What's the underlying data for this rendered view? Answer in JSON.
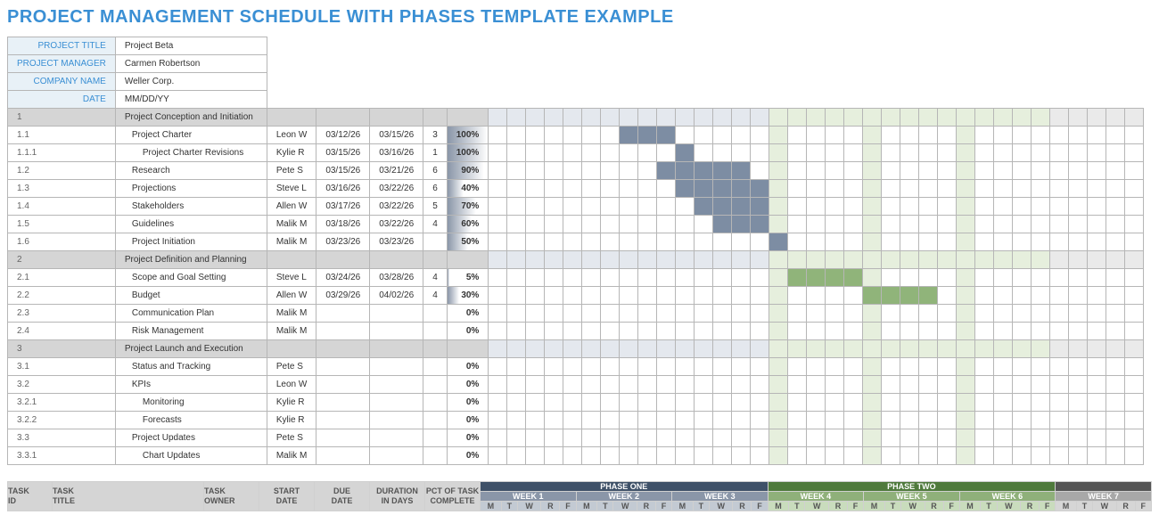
{
  "title": "PROJECT MANAGEMENT SCHEDULE WITH PHASES TEMPLATE EXAMPLE",
  "title_color": "#3a8fd4",
  "meta": {
    "labels": {
      "project_title": "PROJECT TITLE",
      "project_manager": "PROJECT MANAGER",
      "company_name": "COMPANY NAME",
      "date": "DATE"
    },
    "values": {
      "project_title": "Project Beta",
      "project_manager": "Carmen Robertson",
      "company_name": "Weller Corp.",
      "date": "MM/DD/YY"
    },
    "label_bg": "#e8f1f7",
    "label_color": "#3a8fd4"
  },
  "columns": {
    "task_id": "TASK\nID",
    "task_title": "TASK\nTITLE",
    "task_owner": "TASK\nOWNER",
    "start_date": "START\nDATE",
    "due_date": "DUE\nDATE",
    "duration": "DURATION\nIN DAYS",
    "pct": "PCT OF TASK\nCOMPLETE"
  },
  "header_bg": "#d5d5d5",
  "phases": [
    {
      "label": "PHASE ONE",
      "bg": "#3f5168",
      "week_bg": "#8a96a8",
      "day_bg": "#c3cad3",
      "bar": "#7d8da3",
      "tint": "#e4e8ee",
      "weeks": [
        "WEEK 1",
        "WEEK 2",
        "WEEK 3"
      ]
    },
    {
      "label": "PHASE TWO",
      "bg": "#4f7a3c",
      "week_bg": "#8fb07a",
      "day_bg": "#c9dcbd",
      "bar": "#90b47a",
      "tint": "#e6efdd",
      "weeks": [
        "WEEK 4",
        "WEEK 5",
        "WEEK 6"
      ]
    },
    {
      "label": "",
      "bg": "#555555",
      "week_bg": "#a8a8a8",
      "day_bg": "#d6d6d6",
      "bar": "#9a9a9a",
      "tint": "#eaeaea",
      "weeks": [
        "WEEK 7"
      ]
    }
  ],
  "day_labels": [
    "M",
    "T",
    "W",
    "R",
    "F"
  ],
  "days_per_week": 5,
  "timeline_total_days": 35,
  "pct_gradient_from": "#8a96a8",
  "pct_gradient_to": "#ffffff",
  "section_bg": "#d5d5d5",
  "highlight_columns": {
    "phase1": [
      15,
      20
    ],
    "phase2": [
      25
    ]
  },
  "tasks": [
    {
      "id": "1",
      "title": "Project Conception and Initiation",
      "owner": "",
      "start": "",
      "due": "",
      "dur": "",
      "pct": null,
      "indent": 0,
      "section": true,
      "bar": null
    },
    {
      "id": "1.1",
      "title": "Project Charter",
      "owner": "Leon W",
      "start": "03/12/26",
      "due": "03/15/26",
      "dur": "3",
      "pct": 100,
      "indent": 1,
      "bar": {
        "start": 7,
        "len": 3,
        "phase": 0
      }
    },
    {
      "id": "1.1.1",
      "title": "Project Charter Revisions",
      "owner": "Kylie R",
      "start": "03/15/26",
      "due": "03/16/26",
      "dur": "1",
      "pct": 100,
      "indent": 2,
      "bar": {
        "start": 10,
        "len": 1,
        "phase": 0
      }
    },
    {
      "id": "1.2",
      "title": "Research",
      "owner": "Pete S",
      "start": "03/15/26",
      "due": "03/21/26",
      "dur": "6",
      "pct": 90,
      "indent": 1,
      "bar": {
        "start": 9,
        "len": 5,
        "phase": 0
      }
    },
    {
      "id": "1.3",
      "title": "Projections",
      "owner": "Steve L",
      "start": "03/16/26",
      "due": "03/22/26",
      "dur": "6",
      "pct": 40,
      "indent": 1,
      "bar": {
        "start": 10,
        "len": 5,
        "phase": 0
      }
    },
    {
      "id": "1.4",
      "title": "Stakeholders",
      "owner": "Allen W",
      "start": "03/17/26",
      "due": "03/22/26",
      "dur": "5",
      "pct": 70,
      "indent": 1,
      "bar": {
        "start": 11,
        "len": 4,
        "phase": 0
      }
    },
    {
      "id": "1.5",
      "title": "Guidelines",
      "owner": "Malik M",
      "start": "03/18/26",
      "due": "03/22/26",
      "dur": "4",
      "pct": 60,
      "indent": 1,
      "bar": {
        "start": 12,
        "len": 3,
        "phase": 0
      }
    },
    {
      "id": "1.6",
      "title": "Project Initiation",
      "owner": "Malik M",
      "start": "03/23/26",
      "due": "03/23/26",
      "dur": "",
      "pct": 50,
      "indent": 1,
      "bar": {
        "start": 15,
        "len": 1,
        "phase": 0
      }
    },
    {
      "id": "2",
      "title": "Project Definition and Planning",
      "owner": "",
      "start": "",
      "due": "",
      "dur": "",
      "pct": null,
      "indent": 0,
      "section": true,
      "bar": null
    },
    {
      "id": "2.1",
      "title": "Scope and Goal Setting",
      "owner": "Steve L",
      "start": "03/24/26",
      "due": "03/28/26",
      "dur": "4",
      "pct": 5,
      "indent": 1,
      "bar": {
        "start": 16,
        "len": 4,
        "phase": 1
      }
    },
    {
      "id": "2.2",
      "title": "Budget",
      "owner": "Allen W",
      "start": "03/29/26",
      "due": "04/02/26",
      "dur": "4",
      "pct": 30,
      "indent": 1,
      "bar": {
        "start": 20,
        "len": 4,
        "phase": 1
      }
    },
    {
      "id": "2.3",
      "title": "Communication Plan",
      "owner": "Malik M",
      "start": "",
      "due": "",
      "dur": "",
      "pct": 0,
      "indent": 1,
      "bar": null
    },
    {
      "id": "2.4",
      "title": "Risk Management",
      "owner": "Malik M",
      "start": "",
      "due": "",
      "dur": "",
      "pct": 0,
      "indent": 1,
      "bar": null
    },
    {
      "id": "3",
      "title": "Project Launch and Execution",
      "owner": "",
      "start": "",
      "due": "",
      "dur": "",
      "pct": null,
      "indent": 0,
      "section": true,
      "bar": null
    },
    {
      "id": "3.1",
      "title": "Status and Tracking",
      "owner": "Pete S",
      "start": "",
      "due": "",
      "dur": "",
      "pct": 0,
      "indent": 1,
      "bar": null
    },
    {
      "id": "3.2",
      "title": "KPIs",
      "owner": "Leon W",
      "start": "",
      "due": "",
      "dur": "",
      "pct": 0,
      "indent": 1,
      "bar": null
    },
    {
      "id": "3.2.1",
      "title": "Monitoring",
      "owner": "Kylie R",
      "start": "",
      "due": "",
      "dur": "",
      "pct": 0,
      "indent": 2,
      "bar": null
    },
    {
      "id": "3.2.2",
      "title": "Forecasts",
      "owner": "Kylie R",
      "start": "",
      "due": "",
      "dur": "",
      "pct": 0,
      "indent": 2,
      "bar": null
    },
    {
      "id": "3.3",
      "title": "Project Updates",
      "owner": "Pete S",
      "start": "",
      "due": "",
      "dur": "",
      "pct": 0,
      "indent": 1,
      "bar": null
    },
    {
      "id": "3.3.1",
      "title": "Chart Updates",
      "owner": "Malik M",
      "start": "",
      "due": "",
      "dur": "",
      "pct": 0,
      "indent": 2,
      "bar": null
    }
  ]
}
